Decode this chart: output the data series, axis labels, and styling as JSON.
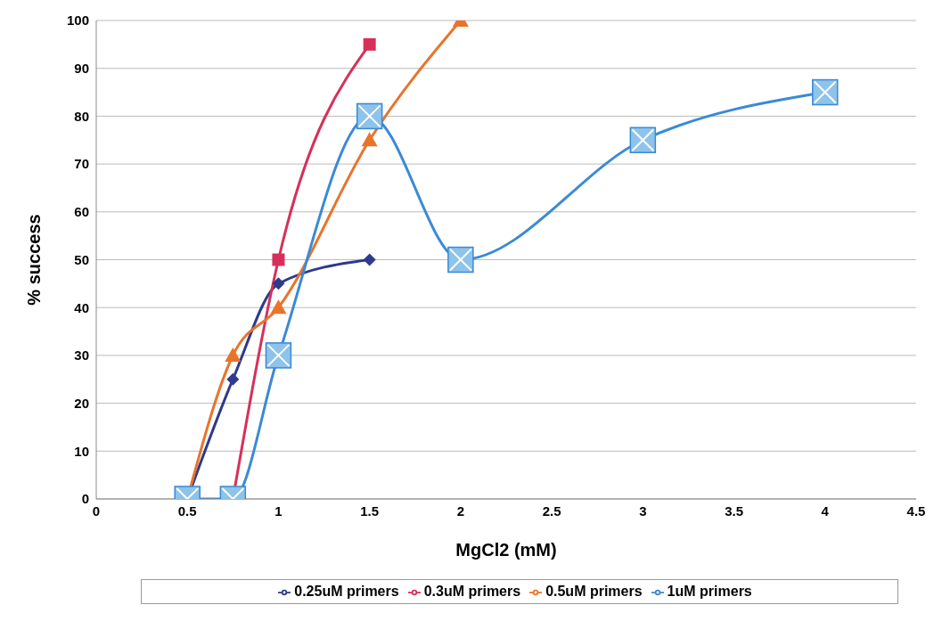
{
  "chart_data": {
    "type": "line",
    "xlabel": "MgCl2 (mM)",
    "ylabel": "% success",
    "xlim": [
      0,
      4.5
    ],
    "xticks": [
      0,
      0.5,
      1,
      1.5,
      2,
      2.5,
      3,
      3.5,
      4,
      4.5
    ],
    "ylim": [
      0,
      100
    ],
    "yticks": [
      0,
      10,
      20,
      30,
      40,
      50,
      60,
      70,
      80,
      90,
      100
    ],
    "grid": "y",
    "legend": "bottom",
    "line_style": "solid",
    "series": [
      {
        "name": "0.25uM primers",
        "color": "#2e3a8c",
        "marker": "diamond",
        "x": [
          0.5,
          0.75,
          1,
          1.5
        ],
        "values": [
          0,
          25,
          45,
          50
        ]
      },
      {
        "name": "0.3uM primers",
        "color": "#d6305a",
        "marker": "square",
        "x": [
          0.75,
          1,
          1.5
        ],
        "values": [
          0,
          50,
          95
        ]
      },
      {
        "name": "0.5uM primers",
        "color": "#e8742c",
        "marker": "triangle",
        "x": [
          0.5,
          0.75,
          1,
          1.5,
          2
        ],
        "values": [
          0,
          30,
          40,
          75,
          100
        ]
      },
      {
        "name": "1uM primers",
        "color": "#3a8ad6",
        "marker": "square",
        "x": [
          0.5,
          0.75,
          1,
          1.5,
          2,
          3,
          4
        ],
        "values": [
          0,
          0,
          30,
          80,
          50,
          75,
          85
        ]
      }
    ]
  }
}
